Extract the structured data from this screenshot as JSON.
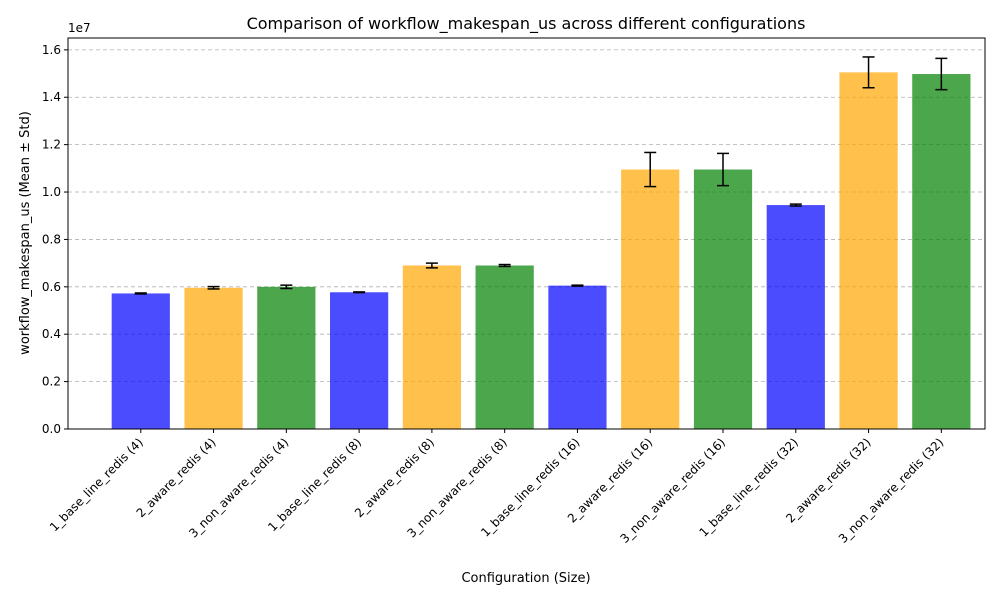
{
  "chart_data": {
    "type": "bar",
    "title": "Comparison of workflow_makespan_us across different configurations",
    "xlabel": "Configuration (Size)",
    "ylabel": "workflow_makespan_us (Mean ± Std)",
    "y_offset_label": "1e7",
    "y_scale_factor": 10000000,
    "ylim": [
      0,
      16500000
    ],
    "yticks": [
      0,
      2000000,
      4000000,
      6000000,
      8000000,
      10000000,
      12000000,
      14000000,
      16000000
    ],
    "ytick_labels": [
      "0.0",
      "0.2",
      "0.4",
      "0.6",
      "0.8",
      "1.0",
      "1.2",
      "1.4",
      "1.6"
    ],
    "grid": "y-dashed",
    "categories": [
      "1_base_line_redis (4)",
      "2_aware_redis (4)",
      "3_non_aware_redis (4)",
      "1_base_line_redis (8)",
      "2_aware_redis (8)",
      "3_non_aware_redis (8)",
      "1_base_line_redis (16)",
      "2_aware_redis (16)",
      "3_non_aware_redis (16)",
      "1_base_line_redis (32)",
      "2_aware_redis (32)",
      "3_non_aware_redis (32)"
    ],
    "values": [
      5720000,
      5960000,
      6000000,
      5770000,
      6900000,
      6900000,
      6050000,
      10950000,
      10950000,
      9450000,
      15050000,
      14980000
    ],
    "errors": [
      20000,
      50000,
      70000,
      15000,
      100000,
      40000,
      20000,
      720000,
      680000,
      40000,
      650000,
      660000
    ],
    "colors": [
      "#0000ff",
      "#ffa500",
      "#008000",
      "#0000ff",
      "#ffa500",
      "#008000",
      "#0000ff",
      "#ffa500",
      "#008000",
      "#0000ff",
      "#ffa500",
      "#008000"
    ],
    "bar_opacity": 0.7
  }
}
